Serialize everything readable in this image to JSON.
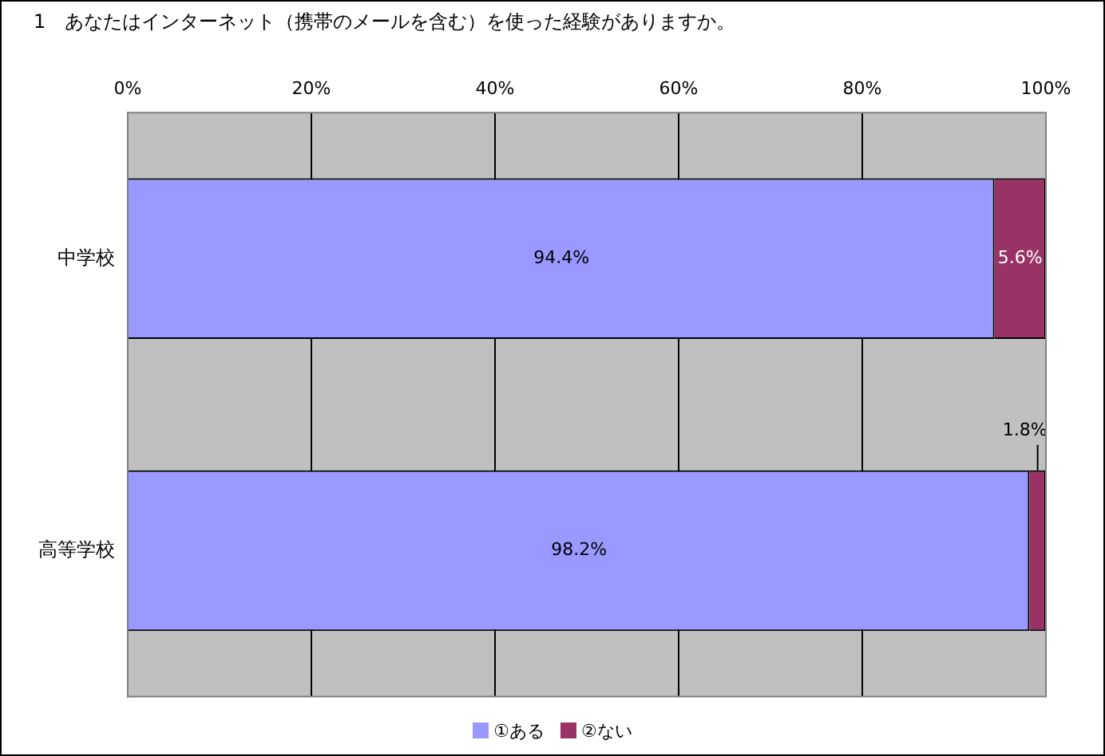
{
  "chart_data": {
    "type": "bar",
    "orientation": "horizontal",
    "stacked": true,
    "title": "1　あなたはインターネット（携帯のメールを含む）を使った経験がありますか。",
    "categories": [
      "中学校",
      "高等学校"
    ],
    "series": [
      {
        "name": "①ある",
        "color": "#9999ff",
        "values": [
          94.4,
          98.2
        ],
        "value_labels": [
          "94.4%",
          "98.2%"
        ]
      },
      {
        "name": "②ない",
        "color": "#993366",
        "values": [
          5.6,
          1.8
        ],
        "value_labels": [
          "5.6%",
          "1.8%"
        ]
      }
    ],
    "xlim": [
      0,
      100
    ],
    "xticks": [
      {
        "value": 0,
        "label": "0%"
      },
      {
        "value": 20,
        "label": "20%"
      },
      {
        "value": 40,
        "label": "40%"
      },
      {
        "value": 60,
        "label": "60%"
      },
      {
        "value": 80,
        "label": "80%"
      },
      {
        "value": 100,
        "label": "100%"
      }
    ],
    "grid": "x",
    "legend": "bottom"
  }
}
